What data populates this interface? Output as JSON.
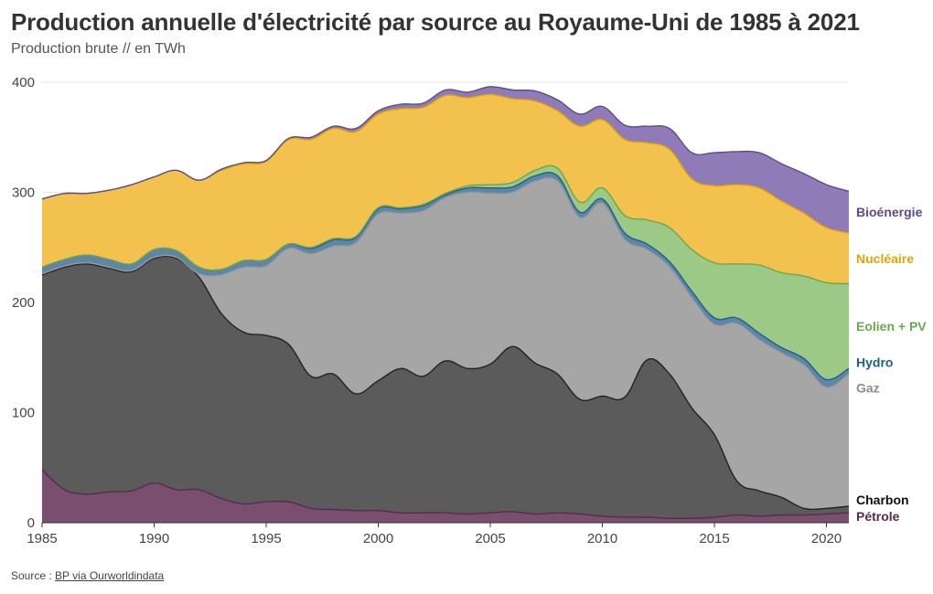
{
  "title": "Production annuelle d'électricité par source au Royaume-Uni de 1985 à 2021",
  "subtitle": "Production brute // en TWh",
  "source_prefix": "Source : ",
  "source_link": "BP via Ourworldindata",
  "chart_data": {
    "type": "area",
    "stacked": true,
    "x": [
      1985,
      1986,
      1987,
      1988,
      1989,
      1990,
      1991,
      1992,
      1993,
      1994,
      1995,
      1996,
      1997,
      1998,
      1999,
      2000,
      2001,
      2002,
      2003,
      2004,
      2005,
      2006,
      2007,
      2008,
      2009,
      2010,
      2011,
      2012,
      2013,
      2014,
      2015,
      2016,
      2017,
      2018,
      2019,
      2020,
      2021
    ],
    "xticks": [
      1985,
      1990,
      1995,
      2000,
      2005,
      2010,
      2015,
      2020
    ],
    "ylim": [
      0,
      400
    ],
    "yticks": [
      0,
      100,
      200,
      300,
      400
    ],
    "grid": true,
    "series": [
      {
        "name": "Pétrole",
        "color": "#7a4e6f",
        "line": "#5a2a4a",
        "values": [
          48,
          30,
          26,
          28,
          29,
          36,
          30,
          30,
          22,
          17,
          19,
          19,
          13,
          12,
          11,
          11,
          9,
          9,
          9,
          8,
          9,
          10,
          8,
          9,
          8,
          6,
          5,
          5,
          4,
          4,
          5,
          7,
          6,
          7,
          7,
          8,
          9
        ]
      },
      {
        "name": "Charbon",
        "color": "#5b5b5b",
        "line": "#222222",
        "values": [
          177,
          202,
          209,
          203,
          199,
          204,
          210,
          193,
          168,
          156,
          151,
          143,
          120,
          123,
          106,
          118,
          131,
          124,
          138,
          132,
          135,
          150,
          137,
          126,
          104,
          109,
          109,
          143,
          131,
          100,
          75,
          31,
          23,
          16,
          6,
          5,
          6
        ]
      },
      {
        "name": "Gaz",
        "color": "#a6a6a6",
        "line": "#9a9a9a",
        "values": [
          1,
          1,
          1,
          1,
          1,
          1,
          1,
          3,
          35,
          59,
          63,
          87,
          111,
          116,
          137,
          151,
          141,
          150,
          148,
          160,
          155,
          140,
          165,
          175,
          165,
          175,
          143,
          100,
          97,
          100,
          100,
          143,
          137,
          131,
          130,
          110,
          120
        ]
      },
      {
        "name": "Hydro",
        "color": "#5d86a8",
        "line": "#1e5f8c",
        "values": [
          6,
          6,
          7,
          7,
          6,
          7,
          6,
          6,
          5,
          6,
          6,
          4,
          5,
          6,
          5,
          5,
          4,
          5,
          3,
          4,
          5,
          5,
          5,
          5,
          5,
          4,
          6,
          5,
          5,
          6,
          6,
          5,
          6,
          5,
          6,
          7,
          5
        ]
      },
      {
        "name": "Eolien + PV",
        "color": "#9cc985",
        "line": "#6aa84f",
        "values": [
          0,
          0,
          0,
          0,
          0,
          0,
          0,
          0,
          0,
          0,
          0,
          0,
          1,
          1,
          1,
          1,
          1,
          1,
          1,
          2,
          3,
          4,
          5,
          7,
          9,
          10,
          16,
          22,
          31,
          38,
          50,
          49,
          62,
          68,
          75,
          88,
          77
        ]
      },
      {
        "name": "Nucléaire",
        "color": "#f2c14e",
        "line": "#e0a500",
        "values": [
          62,
          60,
          56,
          63,
          72,
          66,
          73,
          79,
          90,
          88,
          89,
          95,
          98,
          100,
          95,
          85,
          90,
          88,
          89,
          80,
          82,
          76,
          63,
          52,
          69,
          62,
          69,
          70,
          71,
          64,
          70,
          72,
          70,
          65,
          57,
          50,
          46
        ]
      },
      {
        "name": "Bioénergie",
        "color": "#8e7bb7",
        "line": "#5e4a8f",
        "values": [
          0,
          0,
          0,
          0,
          0,
          0,
          0,
          0,
          1,
          1,
          1,
          1,
          2,
          2,
          3,
          3,
          4,
          4,
          5,
          5,
          7,
          8,
          9,
          10,
          11,
          12,
          13,
          15,
          19,
          24,
          30,
          30,
          32,
          34,
          36,
          39,
          38
        ]
      }
    ]
  }
}
